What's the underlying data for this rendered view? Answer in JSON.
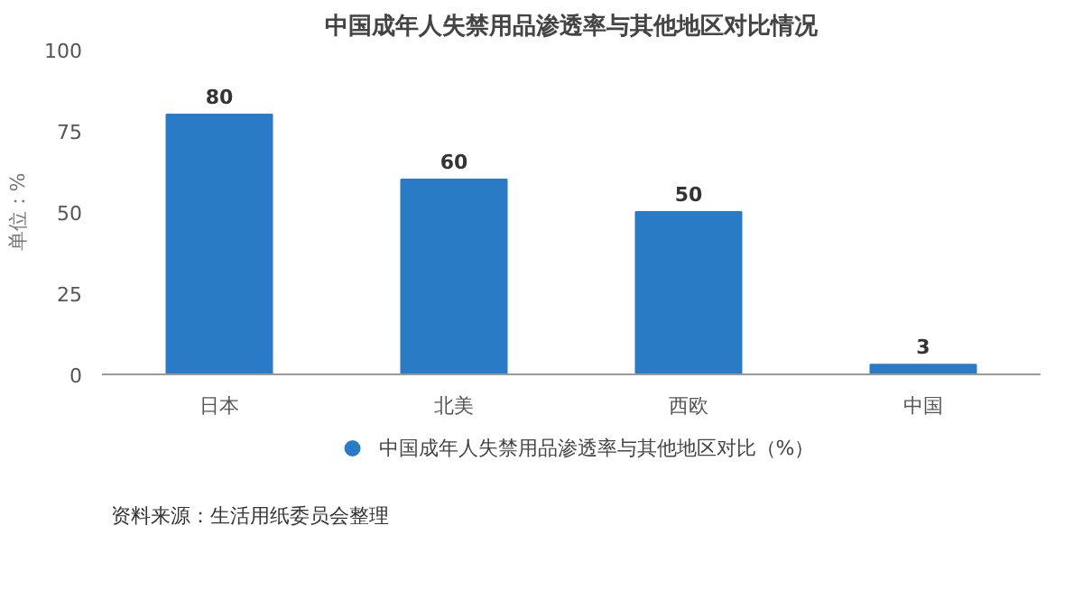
{
  "chart_data": {
    "type": "bar",
    "title": "中国成年人失禁用品渗透率与其他地区对比情况",
    "categories": [
      "日本",
      "北美",
      "西欧",
      "中国"
    ],
    "series": [
      {
        "name": "中国成年人失禁用品渗透率与其他地区对比（%）",
        "color": "#2a7bc6",
        "values": [
          80,
          60,
          50,
          3
        ]
      }
    ],
    "ylabel": "单位：%",
    "ylim": [
      0,
      100
    ],
    "yticks": [
      0,
      25,
      50,
      75,
      100
    ],
    "data_labels": true,
    "legend": "bottom",
    "grid": false,
    "annotations": [
      "资料来源：生活用纸委员会整理"
    ]
  }
}
